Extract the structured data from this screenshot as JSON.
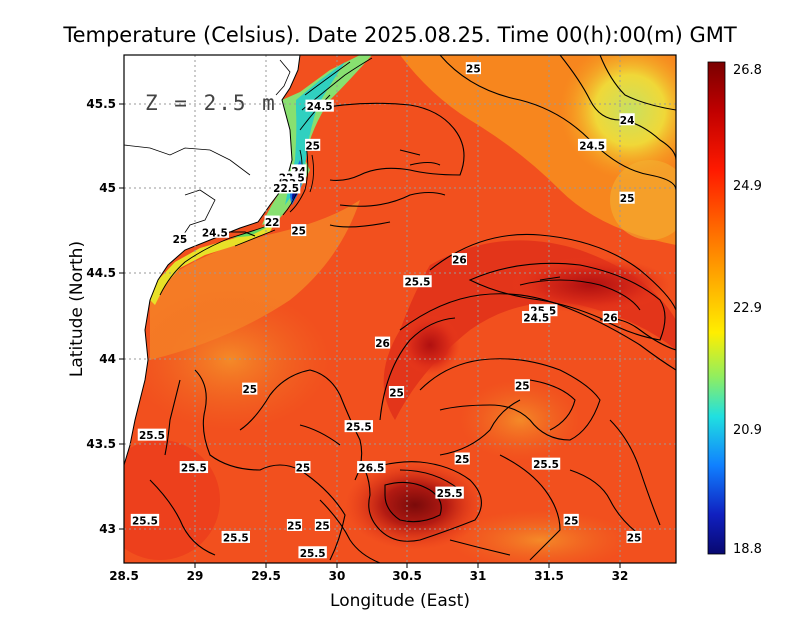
{
  "title": "Temperature (Celsius). Date 2025.08.25. Time 00(h):00(m) GMT",
  "depth_label": "Z = 2.5 m",
  "x_axis": {
    "label": "Longitude (East)",
    "ticks": [
      "28.5",
      "29",
      "29.5",
      "30",
      "30.5",
      "31",
      "31.5",
      "32"
    ],
    "range": [
      28.5,
      32.45
    ]
  },
  "y_axis": {
    "label": "Latitude (North)",
    "ticks": [
      "43",
      "43.5",
      "44",
      "44.5",
      "45",
      "45.5"
    ],
    "range": [
      42.8,
      45.78
    ]
  },
  "colorbar": {
    "ticks": [
      "26.8",
      "24.9",
      "22.9",
      "20.9",
      "18.8"
    ],
    "min": 18.8,
    "max": 26.8
  },
  "colors": {
    "land": "#ffffff",
    "warm_max": "#7a0a0a",
    "sea_dominant": "#f2501e",
    "cold_min": "#0a0a8c"
  },
  "contour_labels": [
    {
      "text": "25",
      "lon": 31.0,
      "lat": 45.7
    },
    {
      "text": "24.5",
      "lon": 29.9,
      "lat": 45.48
    },
    {
      "text": "24",
      "lon": 32.1,
      "lat": 45.4
    },
    {
      "text": "24.5",
      "lon": 31.85,
      "lat": 45.25
    },
    {
      "text": "25",
      "lon": 29.85,
      "lat": 45.25
    },
    {
      "text": "24",
      "lon": 29.75,
      "lat": 45.1
    },
    {
      "text": "23.5",
      "lon": 29.7,
      "lat": 45.06
    },
    {
      "text": "23",
      "lon": 29.68,
      "lat": 45.03
    },
    {
      "text": "22.5",
      "lon": 29.66,
      "lat": 45.0
    },
    {
      "text": "25",
      "lon": 32.1,
      "lat": 44.94
    },
    {
      "text": "22",
      "lon": 29.56,
      "lat": 44.8
    },
    {
      "text": "25",
      "lon": 29.75,
      "lat": 44.75
    },
    {
      "text": "24.5",
      "lon": 29.15,
      "lat": 44.74
    },
    {
      "text": "25",
      "lon": 28.9,
      "lat": 44.7
    },
    {
      "text": "26",
      "lon": 30.9,
      "lat": 44.58
    },
    {
      "text": "25.5",
      "lon": 30.6,
      "lat": 44.45
    },
    {
      "text": "25.5",
      "lon": 31.5,
      "lat": 44.28
    },
    {
      "text": "24.5",
      "lon": 31.45,
      "lat": 44.24
    },
    {
      "text": "26",
      "lon": 31.98,
      "lat": 44.24
    },
    {
      "text": "26",
      "lon": 30.35,
      "lat": 44.09
    },
    {
      "text": "25",
      "lon": 29.4,
      "lat": 43.82
    },
    {
      "text": "25",
      "lon": 30.45,
      "lat": 43.8
    },
    {
      "text": "25",
      "lon": 31.35,
      "lat": 43.84
    },
    {
      "text": "25.5",
      "lon": 30.18,
      "lat": 43.6
    },
    {
      "text": "25.5",
      "lon": 28.7,
      "lat": 43.55
    },
    {
      "text": "25",
      "lon": 30.92,
      "lat": 43.41
    },
    {
      "text": "25",
      "lon": 29.78,
      "lat": 43.36
    },
    {
      "text": "26.5",
      "lon": 30.27,
      "lat": 43.36
    },
    {
      "text": "25.5",
      "lon": 31.52,
      "lat": 43.38
    },
    {
      "text": "25.5",
      "lon": 29.0,
      "lat": 43.36
    },
    {
      "text": "25.5",
      "lon": 30.83,
      "lat": 43.21
    },
    {
      "text": "25.5",
      "lon": 28.65,
      "lat": 43.05
    },
    {
      "text": "25",
      "lon": 29.72,
      "lat": 43.02
    },
    {
      "text": "25",
      "lon": 29.92,
      "lat": 43.02
    },
    {
      "text": "25",
      "lon": 31.7,
      "lat": 43.05
    },
    {
      "text": "25.5",
      "lon": 29.3,
      "lat": 42.95
    },
    {
      "text": "25",
      "lon": 32.15,
      "lat": 42.95
    },
    {
      "text": "25.5",
      "lon": 29.85,
      "lat": 42.86
    }
  ]
}
